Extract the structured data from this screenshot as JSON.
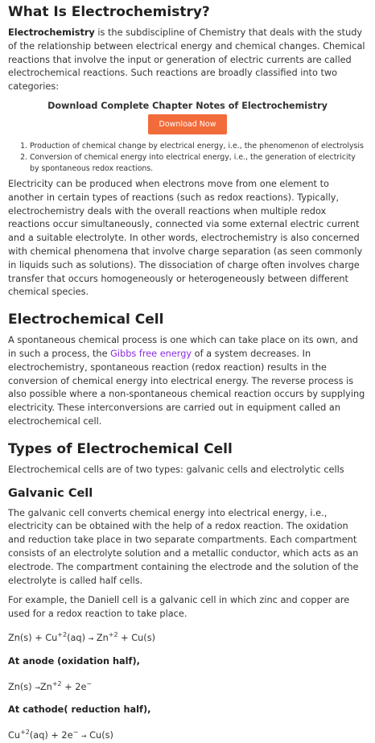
{
  "intro": {
    "title": "What Is Electrochemistry?",
    "term": "Electrochemistry",
    "para1_rest": " is the subdiscipline of Chemistry that deals with the study of the relationship between electrical energy and chemical changes. Chemical reactions that involve the input or generation of electric currents are called electrochemical reactions. Such reactions are broadly classified into two categories:"
  },
  "cta": {
    "title": "Download Complete Chapter Notes of Electrochemistry",
    "button": "Download Now"
  },
  "categories": [
    "Production of chemical change by electrical energy, i.e., the phenomenon of electrolysis",
    "Conversion of chemical energy into electrical energy, i.e., the generation of electricity by spontaneous redox reactions."
  ],
  "intro_para2": "Electricity can be produced when electrons move from one element to another in certain types of reactions (such as redox reactions). Typically, electrochemistry deals with the overall reactions when multiple redox reactions occur simultaneously, connected via some external electric current and a suitable electrolyte. In other words, electrochemistry is also concerned with chemical phenomena that involve charge separation (as seen commonly in liquids such as solutions). The dissociation of charge often involves charge transfer that occurs homogeneously or heterogeneously between different chemical species.",
  "cell": {
    "title": "Electrochemical Cell",
    "text_before": "A spontaneous chemical process is one which can take place on its own, and in such a process, the ",
    "link": "Gibbs free energy",
    "text_after": " of a system decreases. In electrochemistry, spontaneous reaction (redox reaction) results in the conversion of chemical energy into electrical energy. The reverse process is also possible where a non-spontaneous chemical reaction occurs by supplying electricity. These interconversions are carried out in equipment called an electrochemical cell."
  },
  "types": {
    "title": "Types of Electrochemical Cell",
    "text": "Electrochemical cells are of two types: galvanic cells and electrolytic cells"
  },
  "galvanic": {
    "title": "Galvanic Cell",
    "para1": "The galvanic cell converts chemical energy into electrical energy, i.e., electricity can be obtained with the help of a redox reaction. The oxidation and reduction take place in two separate compartments. Each compartment consists of an electrolyte solution and a metallic conductor, which acts as an electrode. The compartment containing the electrode and the solution of the electrolyte is called half cells.",
    "para2": "For example, the Daniell cell is a galvanic cell in which zinc and copper are used for a redox reaction to take place.",
    "anode_label": "At anode (oxidation half),",
    "cathode_label": "At cathode( reduction half),"
  },
  "equations": {
    "overall": {
      "left": "Zn(s) + Cu",
      "sup1": "+2",
      "mid": "(aq) ",
      "arrow": "→",
      "right": " Zn",
      "sup2": "+2",
      "tail": " + Cu(s)"
    },
    "anode": {
      "left": "Zn(s) ",
      "arrow": "→",
      "right": "Zn",
      "sup1": "+2",
      "tail": " + 2e",
      "sup2": "−"
    },
    "cathode": {
      "left": "Cu",
      "sup1": "+2",
      "mid": "(aq) + 2e",
      "sup2": "−",
      "arrow": "→",
      "tail": " Cu(s)"
    }
  }
}
